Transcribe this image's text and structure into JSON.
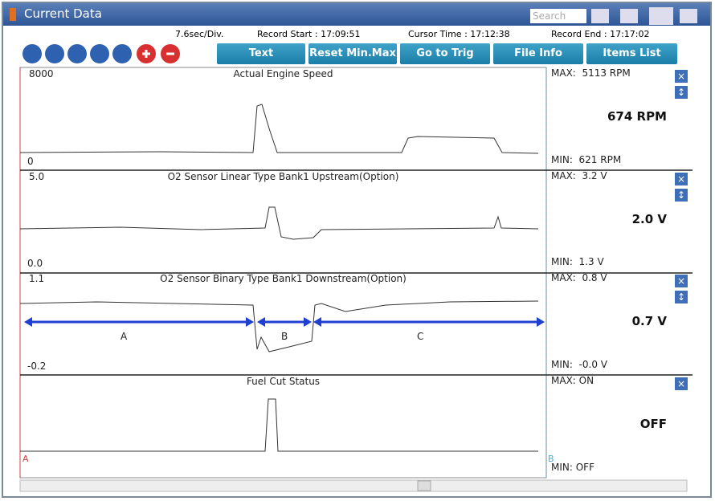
{
  "header": {
    "title": "Current Data",
    "search_placeholder": "Search"
  },
  "status": {
    "time_div": "7.6sec/Div.",
    "record_start": "Record Start : 17:09:51",
    "cursor_time": "Cursor Time : 17:12:38",
    "record_end": "Record End : 17:17:02"
  },
  "toolbar": [
    "Text",
    "Reset Min.Max",
    "Go to Trig",
    "File Info",
    "Items List"
  ],
  "panels": [
    {
      "top": "8000",
      "title": "Actual Engine Speed",
      "bottom": "0",
      "max": "MAX:  5113 RPM",
      "min": "MIN:  621 RPM",
      "value": "674 RPM"
    },
    {
      "top": "5.0",
      "title": "O2 Sensor Linear Type Bank1 Upstream(Option)",
      "bottom": "0.0",
      "max": "MAX:  3.2 V",
      "min": "MIN:  1.3 V",
      "value": "2.0 V"
    },
    {
      "top": "1.1",
      "title": "O2 Sensor Binary Type Bank1 Downstream(Option)",
      "bottom": "-0.2",
      "max": "MAX:  0.8 V",
      "min": "MIN:  -0.0 V",
      "value": "0.7 V",
      "annotations": [
        "A",
        "B",
        "C"
      ]
    },
    {
      "title": "Fuel Cut Status",
      "max": "MAX: ON",
      "min": "MIN: OFF",
      "value": "OFF"
    }
  ],
  "cursors": [
    "A",
    "B"
  ]
}
